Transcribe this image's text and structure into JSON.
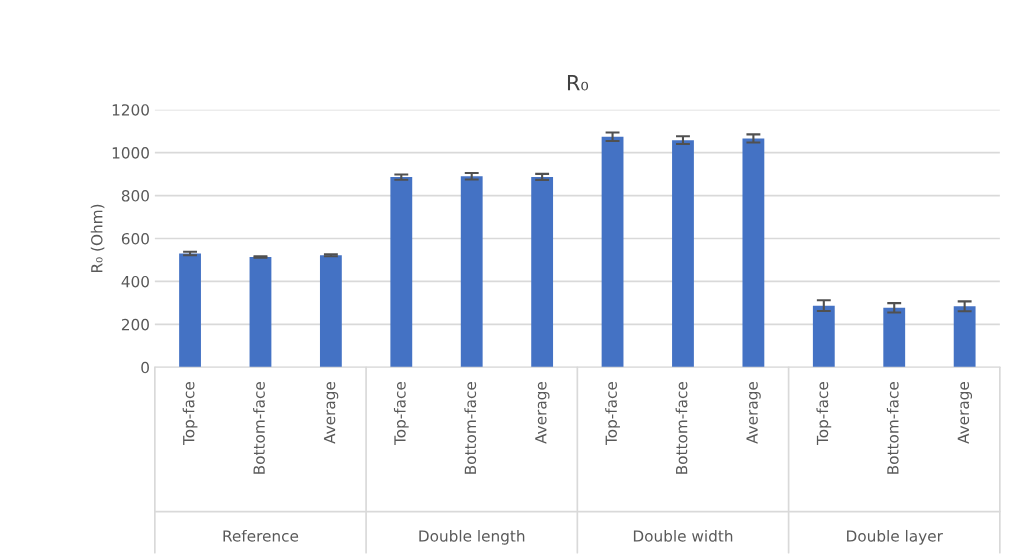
{
  "chart_data": {
    "type": "bar",
    "title": "R₀",
    "ylabel": "R₀ (Ohm)",
    "categories": [
      "Top-face",
      "Bottom-face",
      "Average",
      "Top-face",
      "Bottom-face",
      "Average",
      "Top-face",
      "Bottom-face",
      "Average",
      "Top-face",
      "Bottom-face",
      "Average"
    ],
    "values": [
      530,
      514,
      522,
      886,
      890,
      887,
      1074,
      1058,
      1066,
      287,
      277,
      284
    ],
    "errors": [
      8,
      3,
      5,
      12,
      15,
      14,
      20,
      18,
      19,
      25,
      22,
      23
    ],
    "color": "#4472c4",
    "annotations": [
      "Reference",
      "Double length",
      "Double width",
      "Double layer"
    ],
    "ylim": [
      0,
      1200
    ],
    "yticks": [
      0,
      200,
      400,
      600,
      800,
      1000,
      1200
    ],
    "grid": "y"
  }
}
